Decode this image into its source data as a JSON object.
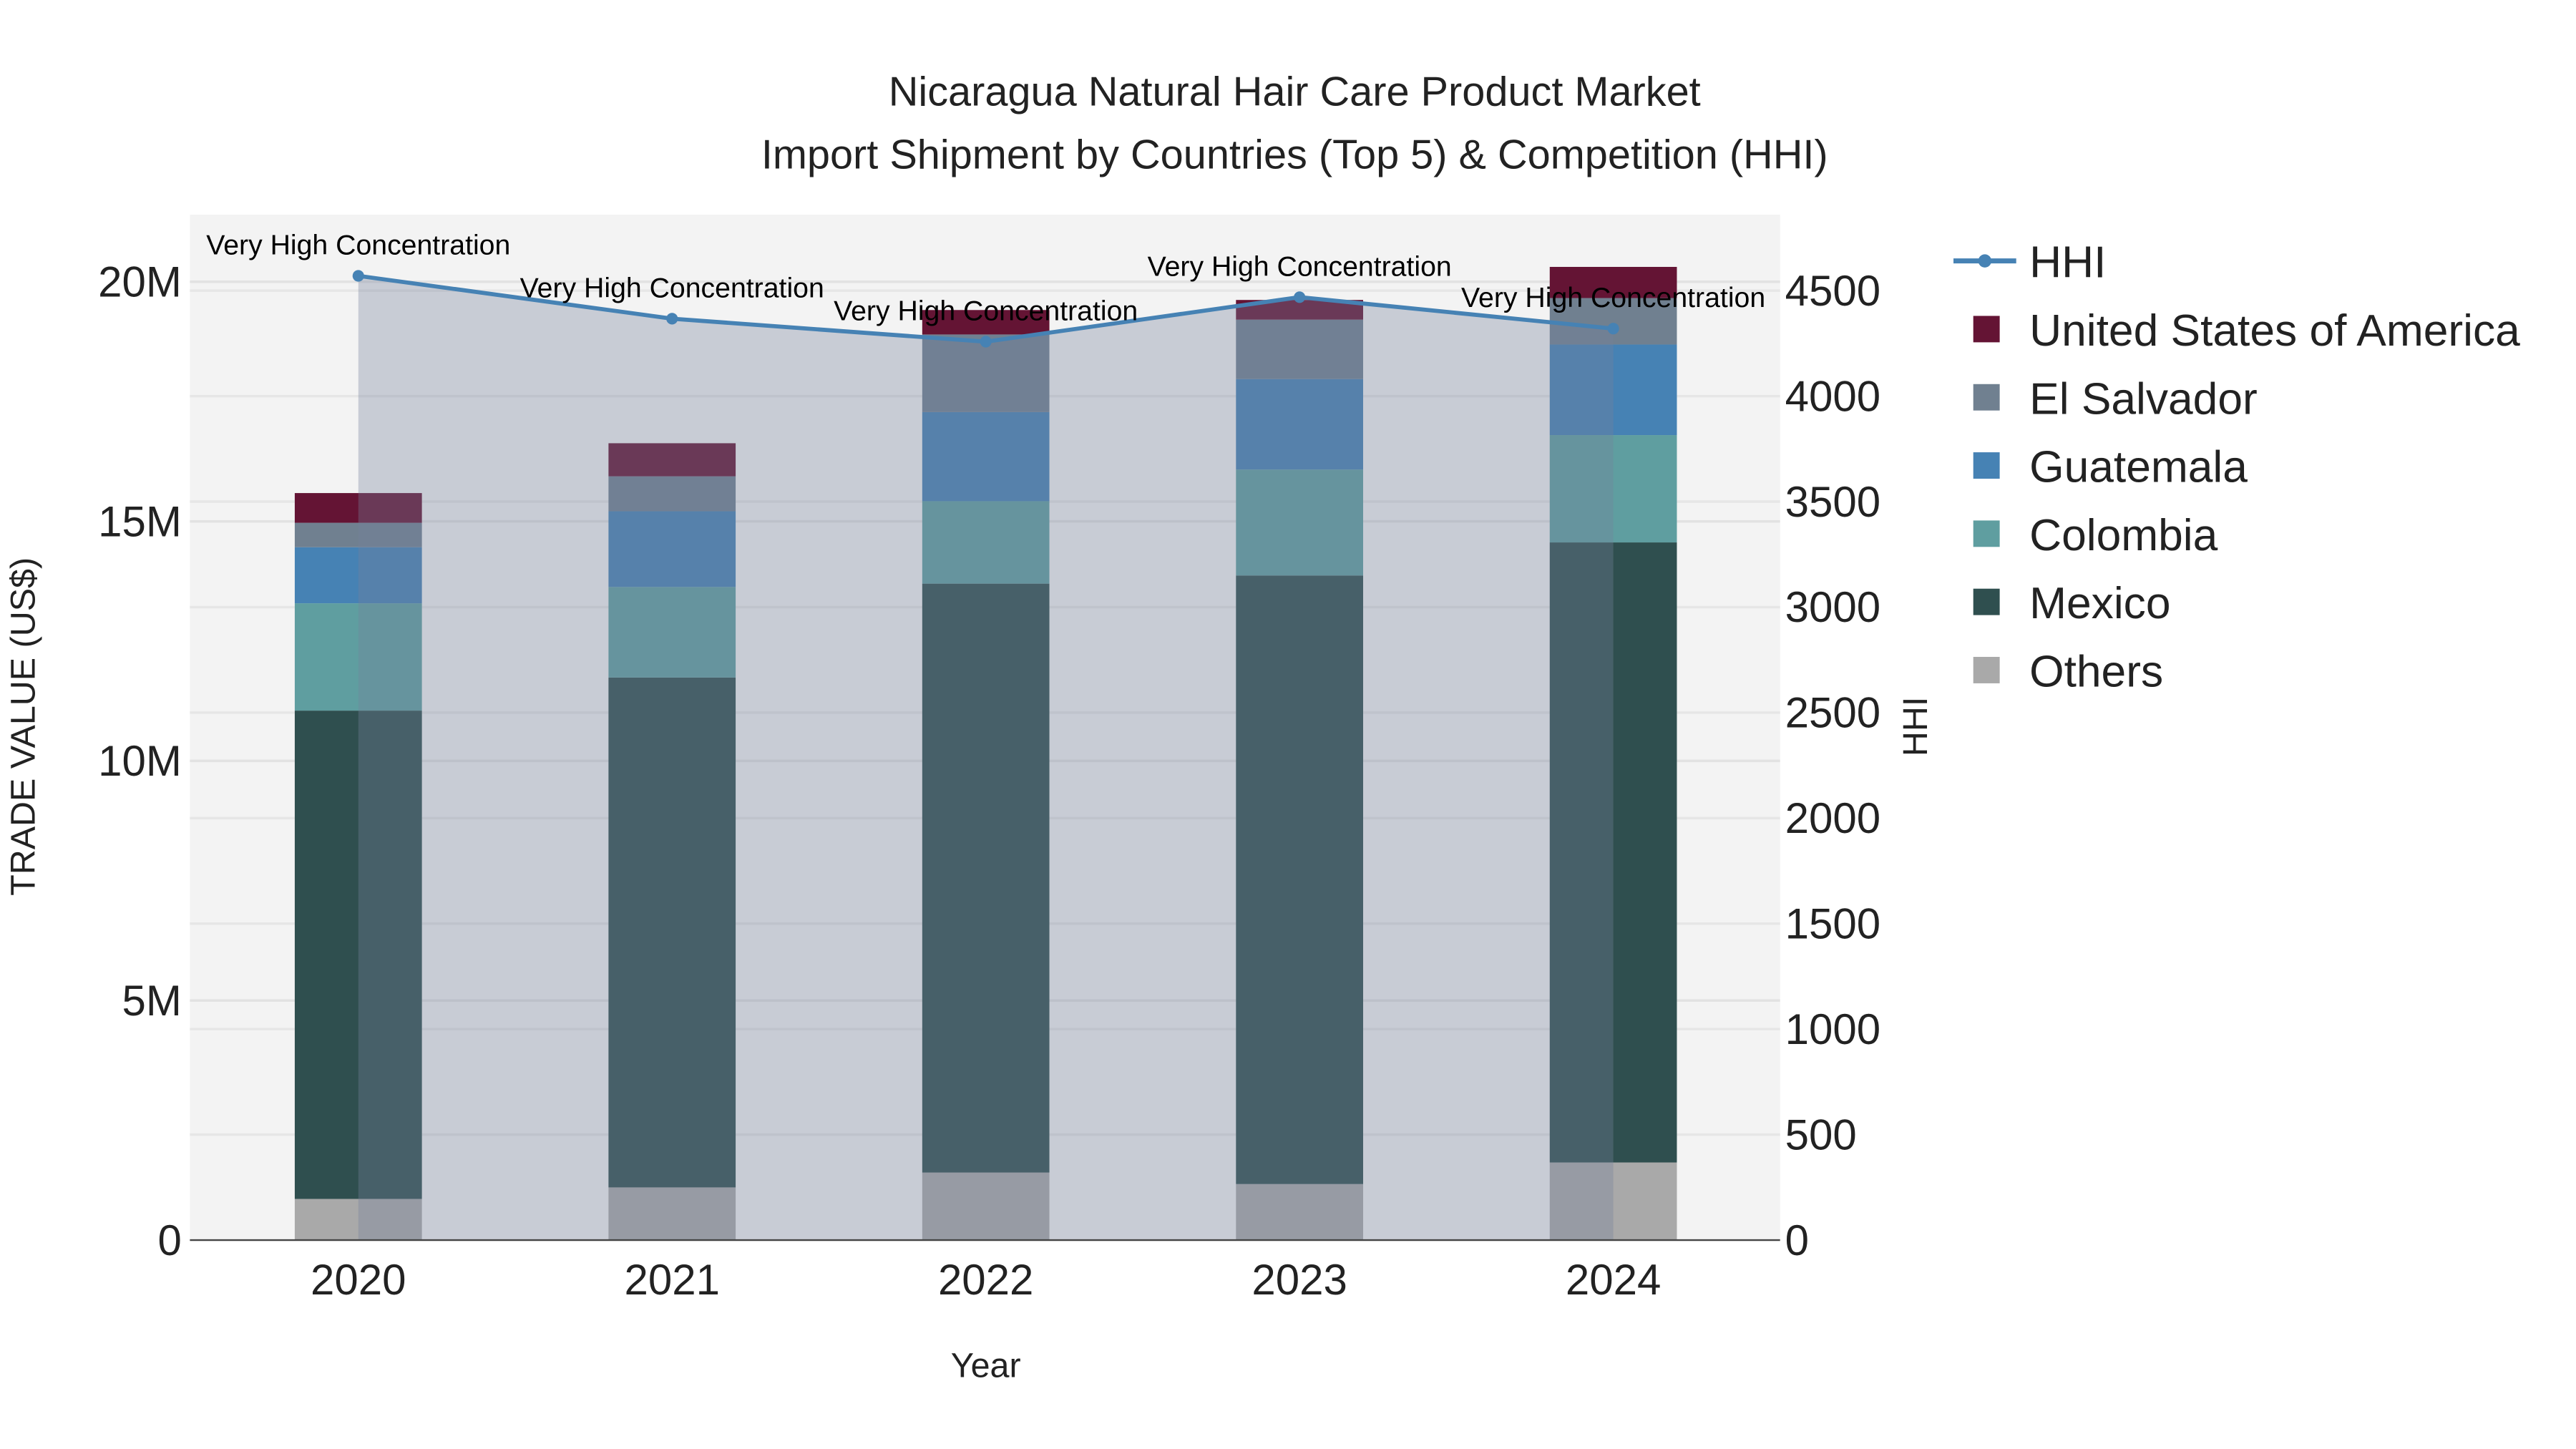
{
  "chart_data": {
    "type": "bar",
    "barmode": "stack",
    "title": "Nicaragua Natural Hair Care Product Market",
    "subtitle": "Import Shipment by Countries (Top 5) & Competition (HHI)",
    "xlabel": "Year",
    "ylabel": "TRADE VALUE (US$)",
    "y2label": "HHI",
    "categories": [
      "2020",
      "2021",
      "2022",
      "2023",
      "2024"
    ],
    "ylim": [
      0,
      21400000
    ],
    "y2lim": [
      0,
      4860
    ],
    "yticks": [
      {
        "v": 0,
        "label": "0"
      },
      {
        "v": 5000000,
        "label": "5M"
      },
      {
        "v": 10000000,
        "label": "10M"
      },
      {
        "v": 15000000,
        "label": "15M"
      },
      {
        "v": 20000000,
        "label": "20M"
      }
    ],
    "y2ticks": [
      "0",
      "500",
      "1000",
      "1500",
      "2000",
      "2500",
      "3000",
      "3500",
      "4000",
      "4500"
    ],
    "grid": true,
    "legend_position": "right",
    "series": [
      {
        "name": "Others",
        "color": "#a9a9a9",
        "values": [
          860000,
          1100000,
          1410000,
          1170000,
          1620000
        ]
      },
      {
        "name": "Mexico",
        "color": "#2f4f4f",
        "values": [
          10190000,
          10640000,
          12290000,
          12700000,
          12940000
        ]
      },
      {
        "name": "Colombia",
        "color": "#5f9ea0",
        "values": [
          2240000,
          1890000,
          1720000,
          2210000,
          2240000
        ]
      },
      {
        "name": "Guatemala",
        "color": "#4682b4",
        "values": [
          1170000,
          1580000,
          1860000,
          1890000,
          1890000
        ]
      },
      {
        "name": "El Salvador",
        "color": "#708090",
        "values": [
          510000,
          730000,
          1620000,
          1240000,
          970000
        ]
      },
      {
        "name": "United States of America",
        "color": "#641434",
        "values": [
          620000,
          690000,
          510000,
          410000,
          650000
        ]
      }
    ],
    "line": {
      "name": "HHI",
      "color": "#4682b4",
      "values": [
        4570,
        4367,
        4258,
        4469,
        4320
      ]
    },
    "annotations": [
      "Very High Concentration",
      "Very High Concentration",
      "Very High Concentration",
      "Very High Concentration",
      "Very High Concentration"
    ],
    "legend_order": [
      "HHI",
      "United States of America",
      "El Salvador",
      "Guatemala",
      "Colombia",
      "Mexico",
      "Others"
    ]
  }
}
